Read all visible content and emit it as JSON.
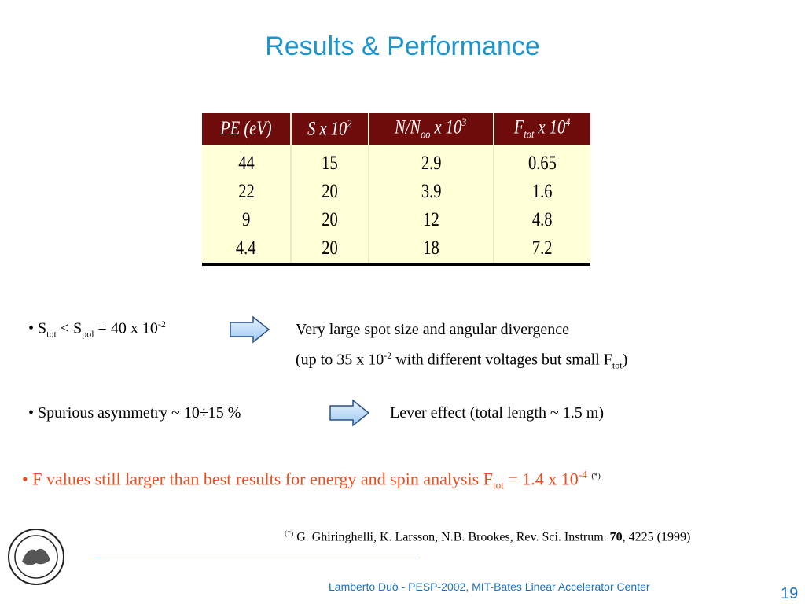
{
  "title": "Results & Performance",
  "table": {
    "header": [
      [
        "PE (eV)"
      ],
      [
        "S x 10",
        "2"
      ],
      [
        "N/N",
        "oo",
        " x 10",
        "3"
      ],
      [
        "F",
        "tot",
        " x 10",
        "4"
      ]
    ],
    "rows": [
      [
        44,
        15,
        2.9,
        0.65
      ],
      [
        22,
        20,
        3.9,
        1.6
      ],
      [
        9,
        20,
        12,
        4.8
      ],
      [
        4.4,
        20,
        18,
        7.2
      ]
    ]
  },
  "bullets": [
    {
      "left": [
        "• S",
        "tot",
        " < S",
        "pol",
        " = 40 x 10",
        "-2"
      ],
      "right": [
        "Very large spot size and angular divergence"
      ],
      "right2": [
        "(up to 35 x 10",
        "-2",
        " with different voltages but small F",
        "tot",
        ")"
      ]
    },
    {
      "left": [
        "• Spurious asymmetry ~ 10÷15 %"
      ],
      "right": [
        "Lever effect (total length ~ 1.5 m)"
      ]
    }
  ],
  "highlight": [
    "• F values still larger than best results for energy and spin analysis F",
    "tot",
    " = 1.4 x 10",
    "-4",
    "(*)"
  ],
  "reference": [
    "(*)",
    " G. Ghiringhelli, K. Larsson, N.B. Brookes, Rev. Sci. Instrum. ",
    "70",
    ", 4225 (1999)"
  ],
  "footer": {
    "text": "Lamberto Duò -  PESP-2002, MIT-Bates Linear Accelerator Center",
    "page": "19"
  }
}
